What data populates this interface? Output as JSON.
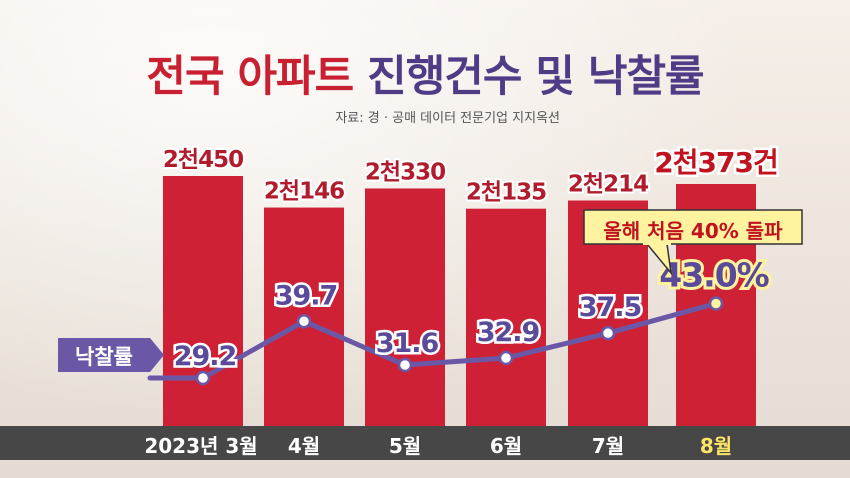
{
  "title": {
    "part1": "전국 아파트",
    "part2": "진행건수 및 낙찰률"
  },
  "source": "자료: 경 · 공매 데이터 전문기업 지지옥션",
  "series_tag": "낙찰률",
  "callout": "올해 처음 40% 돌파",
  "colors": {
    "bar": "#cf2136",
    "line": "#6a58a6",
    "bar_label": "#b01c2d",
    "line_label": "#5a4a9a",
    "highlight_label": "#c0121f",
    "highlight_fill": "#fff3a0"
  },
  "chart_data": {
    "type": "bar",
    "categories": [
      "2023년 3월",
      "4월",
      "5월",
      "6월",
      "7월",
      "8월"
    ],
    "series": [
      {
        "type": "bar",
        "unit": "건",
        "values": [
          2450,
          2146,
          2330,
          2135,
          2214,
          2373
        ],
        "labels": [
          "2천450",
          "2천146",
          "2천330",
          "2천135",
          "2천214",
          "2천373건"
        ]
      },
      {
        "name": "낙찰률",
        "type": "line",
        "unit": "%",
        "values": [
          29.2,
          39.7,
          31.6,
          32.9,
          37.5,
          43.0
        ],
        "labels": [
          "29.2",
          "39.7",
          "31.6",
          "32.9",
          "37.5",
          "43.0%"
        ]
      }
    ],
    "highlight_index": 5
  }
}
